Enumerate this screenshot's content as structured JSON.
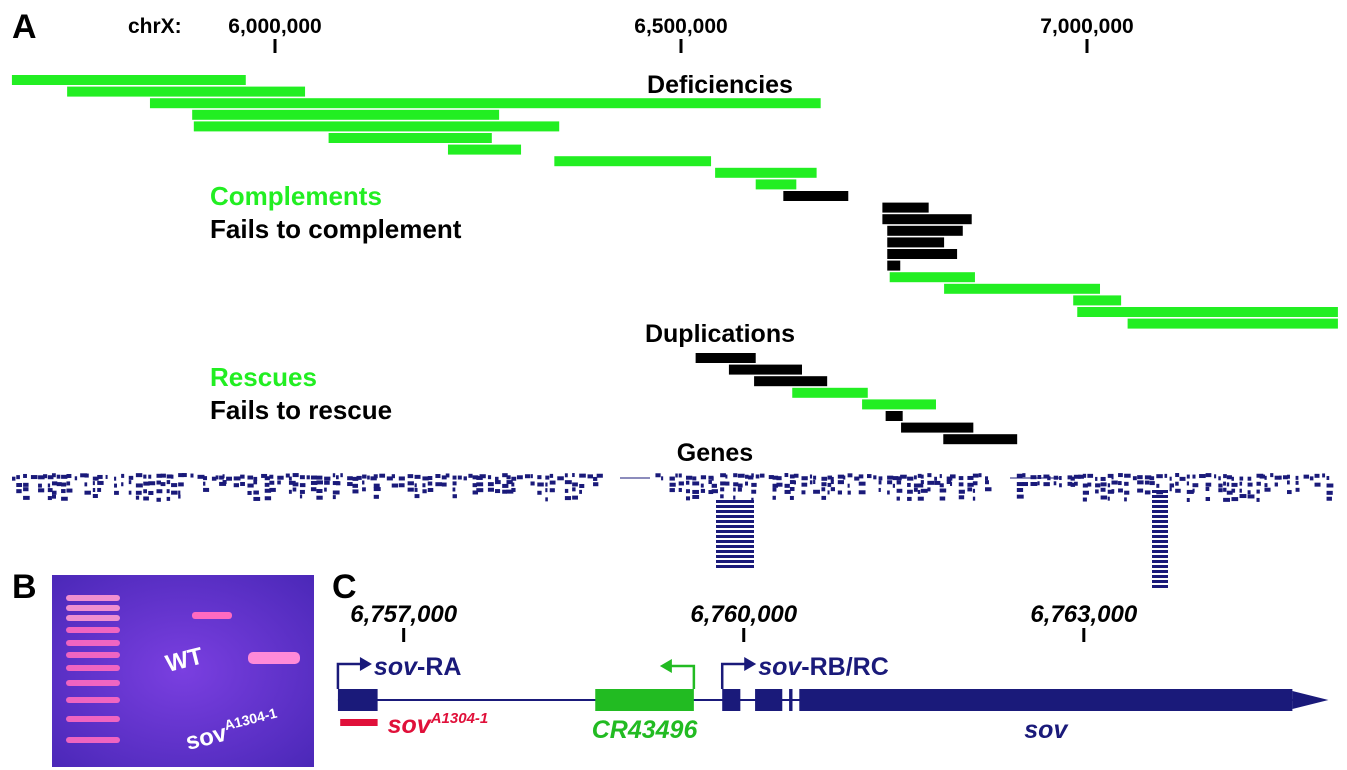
{
  "panel_a": {
    "label": "A",
    "axis_label": "chrX:",
    "xlim": [
      5676100,
      7309100
    ],
    "xticks": [
      {
        "value": 6000000,
        "label": "6,000,000"
      },
      {
        "value": 6500000,
        "label": "6,500,000"
      },
      {
        "value": 7000000,
        "label": "7,000,000"
      }
    ],
    "deficiencies": {
      "title": "Deficiencies",
      "legend": [
        {
          "label": "Complements",
          "color": "#22ee22"
        },
        {
          "label": "Fails to complement",
          "color": "#000000"
        }
      ],
      "bars": [
        {
          "start": 5676000,
          "end": 5964000,
          "color": "#22ee22"
        },
        {
          "start": 5744000,
          "end": 6037000,
          "color": "#22ee22"
        },
        {
          "start": 5846000,
          "end": 6672000,
          "color": "#22ee22"
        },
        {
          "start": 5898000,
          "end": 6276000,
          "color": "#22ee22"
        },
        {
          "start": 5900000,
          "end": 6350000,
          "color": "#22ee22"
        },
        {
          "start": 6066000,
          "end": 6267000,
          "color": "#22ee22"
        },
        {
          "start": 6213000,
          "end": 6303000,
          "color": "#22ee22"
        },
        {
          "start": 6344000,
          "end": 6537000,
          "color": "#22ee22"
        },
        {
          "start": 6542000,
          "end": 6667000,
          "color": "#22ee22"
        },
        {
          "start": 6592000,
          "end": 6642000,
          "color": "#22ee22"
        },
        {
          "start": 6626000,
          "end": 6706000,
          "color": "#000000"
        },
        {
          "start": 6748000,
          "end": 6805000,
          "color": "#000000"
        },
        {
          "start": 6748000,
          "end": 6858000,
          "color": "#000000"
        },
        {
          "start": 6754000,
          "end": 6847000,
          "color": "#000000"
        },
        {
          "start": 6754000,
          "end": 6824000,
          "color": "#000000"
        },
        {
          "start": 6754000,
          "end": 6840000,
          "color": "#000000"
        },
        {
          "start": 6754000,
          "end": 6770000,
          "color": "#000000"
        },
        {
          "start": 6757000,
          "end": 6862000,
          "color": "#22ee22"
        },
        {
          "start": 6824000,
          "end": 7016000,
          "color": "#22ee22"
        },
        {
          "start": 6983000,
          "end": 7042000,
          "color": "#22ee22"
        },
        {
          "start": 6988000,
          "end": 7309000,
          "color": "#22ee22"
        },
        {
          "start": 7050000,
          "end": 7309000,
          "color": "#22ee22"
        }
      ]
    },
    "duplications": {
      "title": "Duplications",
      "legend": [
        {
          "label": "Rescues",
          "color": "#22ee22"
        },
        {
          "label": "Fails to rescue",
          "color": "#000000"
        }
      ],
      "bars": [
        {
          "start": 6518000,
          "end": 6592000,
          "color": "#000000"
        },
        {
          "start": 6559000,
          "end": 6649000,
          "color": "#000000"
        },
        {
          "start": 6590000,
          "end": 6680000,
          "color": "#000000"
        },
        {
          "start": 6637000,
          "end": 6730000,
          "color": "#22ee22"
        },
        {
          "start": 6723000,
          "end": 6814000,
          "color": "#22ee22"
        },
        {
          "start": 6752000,
          "end": 6773000,
          "color": "#000000"
        },
        {
          "start": 6771000,
          "end": 6860000,
          "color": "#000000"
        },
        {
          "start": 6823000,
          "end": 6914000,
          "color": "#000000"
        }
      ]
    },
    "genes": {
      "title": "Genes"
    }
  },
  "panel_b": {
    "label": "B",
    "lane_wt": "WT",
    "lane_mut": {
      "base": "sov",
      "sup": "A1304-1"
    }
  },
  "panel_c": {
    "label": "C",
    "xlim": [
      6756350,
      6765260
    ],
    "xticks": [
      {
        "value": 6757000,
        "label": "6,757,000"
      },
      {
        "value": 6760000,
        "label": "6,760,000"
      },
      {
        "value": 6763000,
        "label": "6,763,000"
      }
    ],
    "gene_line": {
      "start": 6756420,
      "end": 6764840,
      "color": "#1a1a7a"
    },
    "exons": [
      {
        "start": 6756420,
        "end": 6756770,
        "color": "#1a1a7a"
      },
      {
        "start": 6758690,
        "end": 6759560,
        "color": "#22bb22"
      },
      {
        "start": 6759810,
        "end": 6759970,
        "color": "#1a1a7a"
      },
      {
        "start": 6760100,
        "end": 6760340,
        "color": "#1a1a7a"
      },
      {
        "start": 6760400,
        "end": 6760430,
        "color": "#1a1a7a"
      },
      {
        "start": 6760490,
        "end": 6764840,
        "color": "#1a1a7a"
      }
    ],
    "tss": [
      {
        "pos": 6756420,
        "direction": "right",
        "color": "#1a1a7a",
        "name": "sov",
        "suffix": "-RA"
      },
      {
        "pos": 6759810,
        "direction": "right",
        "color": "#1a1a7a",
        "name": "sov",
        "suffix": "-RB/RC"
      },
      {
        "pos": 6759560,
        "direction": "left",
        "color": "#22bb22"
      }
    ],
    "mutation": {
      "start": 6756440,
      "end": 6756770,
      "color": "#e0103a",
      "name": "sov",
      "sup": "A1304-1"
    },
    "noncoding_label": "CR43496",
    "gene_label": "sov"
  }
}
